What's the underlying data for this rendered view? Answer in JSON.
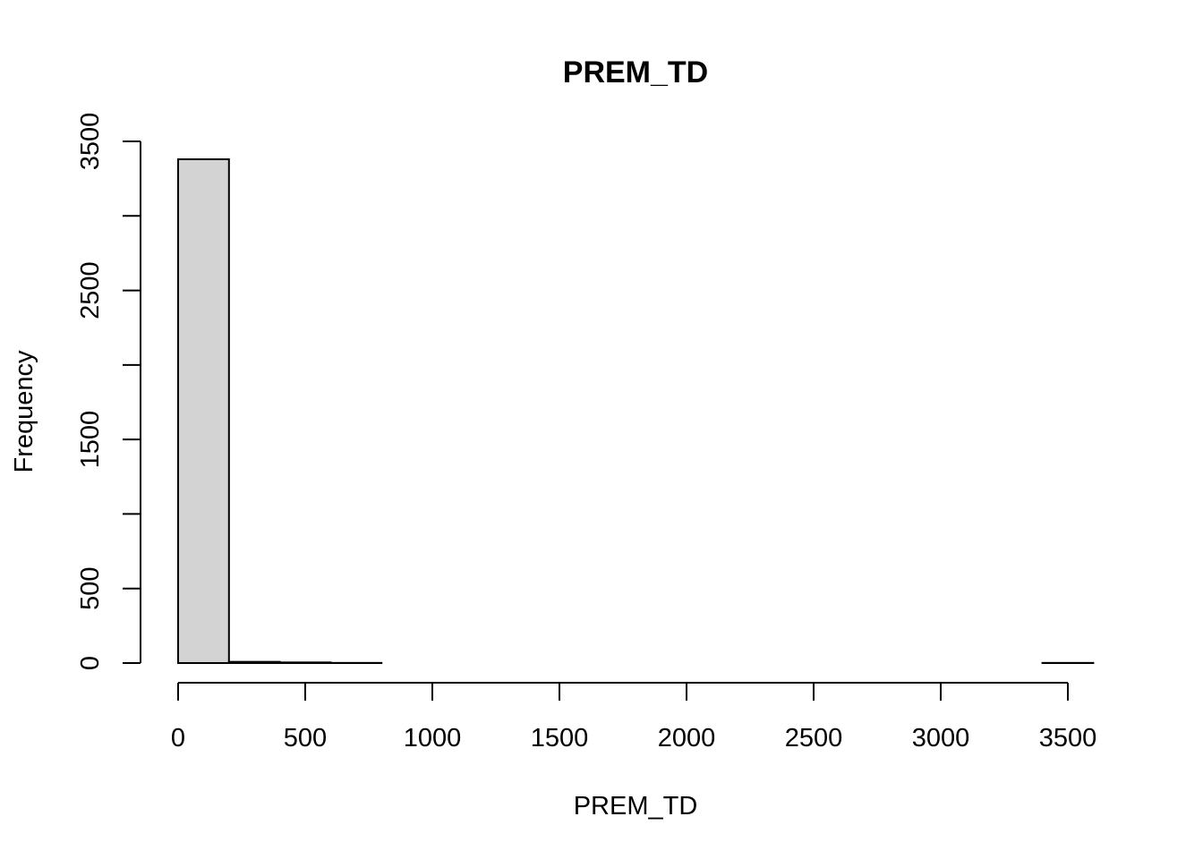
{
  "chart_data": {
    "type": "bar",
    "title": "PREM_TD",
    "xlabel": "PREM_TD",
    "ylabel": "Frequency",
    "bin_width": 200,
    "bins": [
      {
        "start": 0,
        "end": 200,
        "count": 3380
      },
      {
        "start": 200,
        "end": 400,
        "count": 8
      },
      {
        "start": 400,
        "end": 600,
        "count": 4
      },
      {
        "start": 600,
        "end": 800,
        "count": 1
      },
      {
        "start": 800,
        "end": 1000,
        "count": 0
      },
      {
        "start": 1000,
        "end": 1200,
        "count": 0
      },
      {
        "start": 1200,
        "end": 1400,
        "count": 0
      },
      {
        "start": 1400,
        "end": 1600,
        "count": 0
      },
      {
        "start": 1600,
        "end": 1800,
        "count": 0
      },
      {
        "start": 1800,
        "end": 2000,
        "count": 0
      },
      {
        "start": 2000,
        "end": 2200,
        "count": 0
      },
      {
        "start": 2200,
        "end": 2400,
        "count": 0
      },
      {
        "start": 2400,
        "end": 2600,
        "count": 0
      },
      {
        "start": 2600,
        "end": 2800,
        "count": 0
      },
      {
        "start": 2800,
        "end": 3000,
        "count": 0
      },
      {
        "start": 3000,
        "end": 3200,
        "count": 0
      },
      {
        "start": 3200,
        "end": 3400,
        "count": 0
      },
      {
        "start": 3400,
        "end": 3600,
        "count": 1
      }
    ],
    "xlim": [
      0,
      3500
    ],
    "ylim": [
      0,
      3500
    ],
    "x_ticks": [
      0,
      500,
      1000,
      1500,
      2000,
      2500,
      3000,
      3500
    ],
    "y_ticks": [
      0,
      500,
      1000,
      1500,
      2000,
      2500,
      3000,
      3500
    ],
    "y_tick_labels": [
      "0",
      "500",
      "",
      "1500",
      "",
      "2500",
      "",
      "3500"
    ],
    "grid": false,
    "bar_fill": "#d3d3d3",
    "bar_stroke": "#000000"
  }
}
